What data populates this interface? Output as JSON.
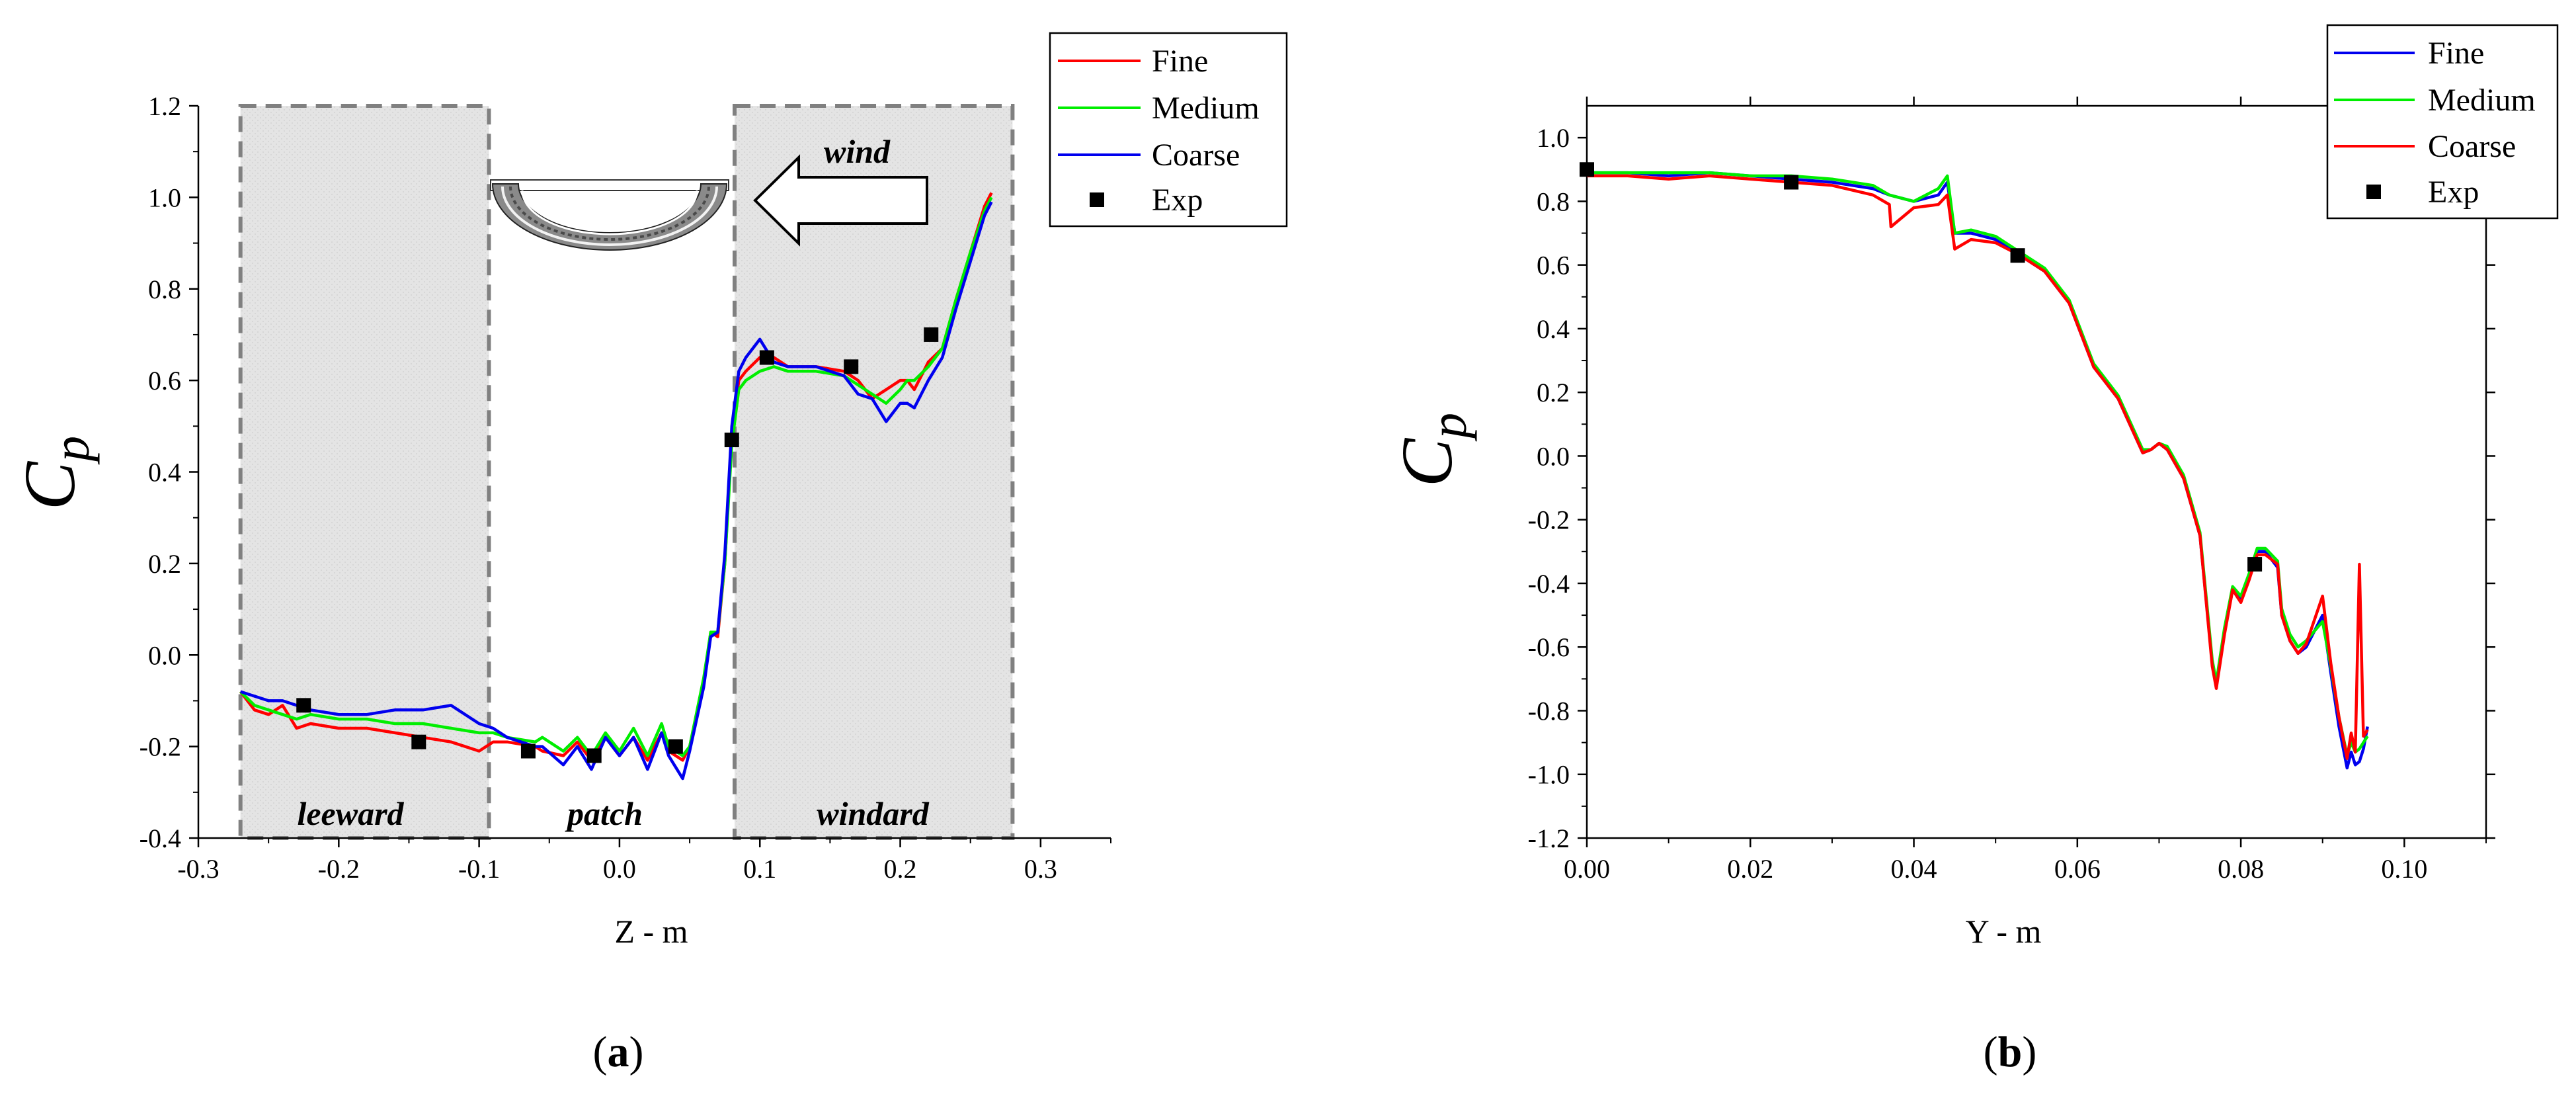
{
  "chart_data": [
    {
      "type": "line",
      "panel_label": {
        "open": "(",
        "letter": "a",
        "close": ")"
      },
      "xlabel": "Z - m",
      "ylabel": {
        "main": "C",
        "sub": "p"
      },
      "xlim": [
        -0.3,
        0.35
      ],
      "ylim": [
        -0.4,
        1.2
      ],
      "xticks": [
        -0.3,
        -0.2,
        -0.1,
        0.0,
        0.1,
        0.2,
        0.3
      ],
      "xtick_labels": [
        "-0.3",
        "-0.2",
        "-0.1",
        "0.0",
        "0.1",
        "0.2",
        "0.3"
      ],
      "yticks": [
        -0.4,
        -0.2,
        0.0,
        0.2,
        0.4,
        0.6,
        0.8,
        1.0,
        1.2
      ],
      "ytick_labels": [
        "-0.4",
        "-0.2",
        "0.0",
        "0.2",
        "0.4",
        "0.6",
        "0.8",
        "1.0",
        "1.2"
      ],
      "regions": [
        {
          "label": "leeward",
          "x": [
            -0.27,
            -0.093
          ],
          "shaded": true
        },
        {
          "label": "patch",
          "x": [
            -0.093,
            0.082
          ],
          "shaded": false
        },
        {
          "label": "windard",
          "x": [
            0.082,
            0.28
          ],
          "shaded": true
        }
      ],
      "wind_label": "wind",
      "legend": [
        "Fine",
        "Medium",
        "Coarse",
        "Exp"
      ],
      "series": [
        {
          "name": "Fine",
          "color": "#ff0000",
          "x": [
            -0.27,
            -0.26,
            -0.25,
            -0.24,
            -0.23,
            -0.22,
            -0.2,
            -0.18,
            -0.16,
            -0.14,
            -0.12,
            -0.1,
            -0.09,
            -0.08,
            -0.06,
            -0.055,
            -0.04,
            -0.03,
            -0.02,
            -0.01,
            0.0,
            0.01,
            0.02,
            0.03,
            0.035,
            0.045,
            0.05,
            0.06,
            0.065,
            0.07,
            0.075,
            0.08,
            0.085,
            0.09,
            0.1,
            0.11,
            0.12,
            0.14,
            0.16,
            0.17,
            0.18,
            0.19,
            0.2,
            0.205,
            0.21,
            0.22,
            0.23,
            0.24,
            0.25,
            0.26,
            0.265
          ],
          "y": [
            -0.08,
            -0.12,
            -0.13,
            -0.11,
            -0.16,
            -0.15,
            -0.16,
            -0.16,
            -0.17,
            -0.18,
            -0.19,
            -0.21,
            -0.19,
            -0.19,
            -0.2,
            -0.21,
            -0.22,
            -0.19,
            -0.23,
            -0.18,
            -0.22,
            -0.18,
            -0.23,
            -0.17,
            -0.21,
            -0.23,
            -0.2,
            -0.06,
            0.05,
            0.04,
            0.2,
            0.48,
            0.6,
            0.62,
            0.65,
            0.65,
            0.63,
            0.63,
            0.62,
            0.6,
            0.56,
            0.58,
            0.6,
            0.6,
            0.58,
            0.64,
            0.67,
            0.78,
            0.88,
            0.98,
            1.01
          ]
        },
        {
          "name": "Medium",
          "color": "#00ee00",
          "x": [
            -0.27,
            -0.26,
            -0.25,
            -0.24,
            -0.23,
            -0.22,
            -0.2,
            -0.18,
            -0.16,
            -0.14,
            -0.12,
            -0.1,
            -0.09,
            -0.08,
            -0.06,
            -0.055,
            -0.04,
            -0.03,
            -0.02,
            -0.01,
            0.0,
            0.01,
            0.02,
            0.03,
            0.035,
            0.045,
            0.05,
            0.06,
            0.065,
            0.07,
            0.075,
            0.08,
            0.085,
            0.09,
            0.1,
            0.11,
            0.12,
            0.14,
            0.16,
            0.17,
            0.18,
            0.19,
            0.2,
            0.205,
            0.21,
            0.22,
            0.23,
            0.24,
            0.25,
            0.26,
            0.265
          ],
          "y": [
            -0.08,
            -0.11,
            -0.12,
            -0.13,
            -0.14,
            -0.13,
            -0.14,
            -0.14,
            -0.15,
            -0.15,
            -0.16,
            -0.17,
            -0.17,
            -0.18,
            -0.19,
            -0.18,
            -0.21,
            -0.18,
            -0.22,
            -0.17,
            -0.21,
            -0.16,
            -0.22,
            -0.15,
            -0.2,
            -0.22,
            -0.2,
            -0.05,
            0.05,
            0.05,
            0.2,
            0.46,
            0.58,
            0.6,
            0.62,
            0.63,
            0.62,
            0.62,
            0.61,
            0.59,
            0.57,
            0.55,
            0.58,
            0.6,
            0.6,
            0.63,
            0.67,
            0.78,
            0.88,
            0.97,
            1.0
          ]
        },
        {
          "name": "Coarse",
          "color": "#0000ee",
          "x": [
            -0.27,
            -0.26,
            -0.25,
            -0.24,
            -0.23,
            -0.22,
            -0.2,
            -0.18,
            -0.16,
            -0.14,
            -0.12,
            -0.1,
            -0.09,
            -0.08,
            -0.06,
            -0.055,
            -0.04,
            -0.03,
            -0.02,
            -0.01,
            0.0,
            0.01,
            0.02,
            0.03,
            0.035,
            0.045,
            0.05,
            0.06,
            0.065,
            0.07,
            0.075,
            0.08,
            0.085,
            0.09,
            0.1,
            0.11,
            0.12,
            0.14,
            0.16,
            0.17,
            0.18,
            0.19,
            0.2,
            0.205,
            0.21,
            0.22,
            0.23,
            0.24,
            0.25,
            0.26,
            0.265
          ],
          "y": [
            -0.08,
            -0.09,
            -0.1,
            -0.1,
            -0.11,
            -0.12,
            -0.13,
            -0.13,
            -0.12,
            -0.12,
            -0.11,
            -0.15,
            -0.16,
            -0.18,
            -0.2,
            -0.2,
            -0.24,
            -0.2,
            -0.25,
            -0.18,
            -0.22,
            -0.18,
            -0.25,
            -0.17,
            -0.22,
            -0.27,
            -0.21,
            -0.07,
            0.04,
            0.05,
            0.22,
            0.5,
            0.62,
            0.65,
            0.69,
            0.64,
            0.63,
            0.63,
            0.61,
            0.57,
            0.56,
            0.51,
            0.55,
            0.55,
            0.54,
            0.6,
            0.65,
            0.76,
            0.86,
            0.96,
            0.99
          ]
        }
      ],
      "exp": {
        "name": "Exp",
        "color": "#000000",
        "x": [
          -0.225,
          -0.143,
          -0.065,
          -0.018,
          0.04,
          0.08,
          0.105,
          0.165,
          0.222
        ],
        "y": [
          -0.11,
          -0.19,
          -0.21,
          -0.22,
          -0.2,
          0.47,
          0.65,
          0.63,
          0.7
        ]
      }
    },
    {
      "type": "line",
      "panel_label": {
        "open": "(",
        "letter": "b",
        "close": ")"
      },
      "xlabel": "Y - m",
      "ylabel": {
        "main": "C",
        "sub": "p"
      },
      "xlim": [
        0.0,
        0.11
      ],
      "ylim": [
        -1.2,
        1.1
      ],
      "xticks": [
        0.0,
        0.02,
        0.04,
        0.06,
        0.08,
        0.1
      ],
      "xtick_labels": [
        "0.00",
        "0.02",
        "0.04",
        "0.06",
        "0.08",
        "0.10"
      ],
      "yticks": [
        -1.2,
        -1.0,
        -0.8,
        -0.6,
        -0.4,
        -0.2,
        0.0,
        0.2,
        0.4,
        0.6,
        0.8,
        1.0
      ],
      "ytick_labels": [
        "-1.2",
        "-1.0",
        "-0.8",
        "-0.6",
        "-0.4",
        "-0.2",
        "0.0",
        "0.2",
        "0.4",
        "0.6",
        "0.8",
        "1.0"
      ],
      "legend": [
        "Fine",
        "Medium",
        "Coarse",
        "Exp"
      ],
      "series": [
        {
          "name": "Fine",
          "color": "#0000ee",
          "x": [
            0.0,
            0.005,
            0.01,
            0.015,
            0.02,
            0.025,
            0.03,
            0.035,
            0.037,
            0.04,
            0.043,
            0.0441,
            0.045,
            0.047,
            0.05,
            0.053,
            0.056,
            0.059,
            0.062,
            0.065,
            0.068,
            0.069,
            0.07,
            0.071,
            0.073,
            0.075,
            0.0765,
            0.077,
            0.078,
            0.079,
            0.08,
            0.081,
            0.082,
            0.083,
            0.0845,
            0.085,
            0.086,
            0.087,
            0.088,
            0.09,
            0.091,
            0.092,
            0.093,
            0.0935,
            0.094,
            0.0945,
            0.095,
            0.0955
          ],
          "y": [
            0.89,
            0.89,
            0.88,
            0.89,
            0.88,
            0.87,
            0.86,
            0.84,
            0.82,
            0.8,
            0.82,
            0.86,
            0.7,
            0.7,
            0.68,
            0.63,
            0.58,
            0.48,
            0.28,
            0.18,
            0.01,
            0.02,
            0.04,
            0.02,
            -0.07,
            -0.25,
            -0.65,
            -0.72,
            -0.55,
            -0.42,
            -0.45,
            -0.38,
            -0.3,
            -0.3,
            -0.35,
            -0.5,
            -0.58,
            -0.62,
            -0.6,
            -0.5,
            -0.68,
            -0.85,
            -0.98,
            -0.93,
            -0.97,
            -0.96,
            -0.92,
            -0.85
          ]
        },
        {
          "name": "Medium",
          "color": "#00ee00",
          "x": [
            0.0,
            0.005,
            0.01,
            0.015,
            0.02,
            0.025,
            0.03,
            0.035,
            0.037,
            0.04,
            0.043,
            0.0441,
            0.045,
            0.047,
            0.05,
            0.053,
            0.056,
            0.059,
            0.062,
            0.065,
            0.068,
            0.069,
            0.07,
            0.071,
            0.073,
            0.075,
            0.0765,
            0.077,
            0.078,
            0.079,
            0.08,
            0.081,
            0.082,
            0.083,
            0.0845,
            0.085,
            0.086,
            0.087,
            0.088,
            0.09,
            0.091,
            0.092,
            0.093,
            0.0935,
            0.094,
            0.0945,
            0.095,
            0.0955
          ],
          "y": [
            0.89,
            0.89,
            0.89,
            0.89,
            0.88,
            0.88,
            0.87,
            0.85,
            0.82,
            0.8,
            0.84,
            0.88,
            0.7,
            0.71,
            0.69,
            0.64,
            0.59,
            0.49,
            0.29,
            0.19,
            0.02,
            0.02,
            0.04,
            0.03,
            -0.06,
            -0.24,
            -0.64,
            -0.71,
            -0.54,
            -0.41,
            -0.44,
            -0.37,
            -0.29,
            -0.29,
            -0.33,
            -0.48,
            -0.56,
            -0.6,
            -0.58,
            -0.52,
            -0.66,
            -0.82,
            -0.94,
            -0.9,
            -0.93,
            -0.92,
            -0.9,
            -0.88
          ]
        },
        {
          "name": "Coarse",
          "color": "#ff0000",
          "x": [
            0.0,
            0.005,
            0.01,
            0.015,
            0.02,
            0.025,
            0.03,
            0.035,
            0.037,
            0.0372,
            0.04,
            0.043,
            0.0441,
            0.045,
            0.047,
            0.05,
            0.053,
            0.056,
            0.059,
            0.062,
            0.065,
            0.068,
            0.069,
            0.07,
            0.071,
            0.073,
            0.075,
            0.0765,
            0.077,
            0.078,
            0.079,
            0.08,
            0.081,
            0.082,
            0.083,
            0.0845,
            0.085,
            0.086,
            0.087,
            0.088,
            0.09,
            0.091,
            0.092,
            0.093,
            0.0935,
            0.094,
            0.0945,
            0.095,
            0.0955
          ],
          "y": [
            0.88,
            0.88,
            0.87,
            0.88,
            0.87,
            0.86,
            0.85,
            0.82,
            0.79,
            0.72,
            0.78,
            0.79,
            0.82,
            0.65,
            0.68,
            0.67,
            0.63,
            0.58,
            0.48,
            0.28,
            0.18,
            0.01,
            0.02,
            0.04,
            0.02,
            -0.07,
            -0.25,
            -0.66,
            -0.73,
            -0.56,
            -0.42,
            -0.46,
            -0.39,
            -0.31,
            -0.31,
            -0.34,
            -0.5,
            -0.58,
            -0.62,
            -0.59,
            -0.44,
            -0.65,
            -0.82,
            -0.95,
            -0.87,
            -0.93,
            -0.34,
            -0.88,
            -0.86
          ]
        }
      ],
      "exp": {
        "name": "Exp",
        "color": "#000000",
        "x": [
          0.0,
          0.025,
          0.0527,
          0.0817
        ],
        "y": [
          0.9,
          0.86,
          0.63,
          -0.34
        ]
      }
    }
  ]
}
